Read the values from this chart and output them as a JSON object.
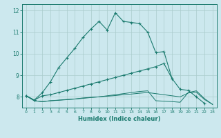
{
  "xlabel": "Humidex (Indice chaleur)",
  "bg_color": "#cce8ee",
  "grid_color": "#aacccc",
  "line_color": "#1a7a6e",
  "xlim": [
    -0.5,
    23.5
  ],
  "ylim": [
    7.5,
    12.3
  ],
  "xticks": [
    0,
    1,
    2,
    3,
    4,
    5,
    6,
    7,
    8,
    9,
    10,
    11,
    12,
    13,
    14,
    15,
    16,
    17,
    18,
    19,
    20,
    21,
    22,
    23
  ],
  "yticks": [
    8,
    9,
    10,
    11,
    12
  ],
  "line1_x": [
    0,
    1,
    2,
    3,
    4,
    5,
    6,
    7,
    8,
    9,
    10,
    11,
    12,
    13,
    14,
    15,
    16,
    17,
    18,
    19,
    20,
    21,
    22
  ],
  "line1_y": [
    8.05,
    7.85,
    8.2,
    8.7,
    9.35,
    9.8,
    10.25,
    10.75,
    11.15,
    11.5,
    11.1,
    11.9,
    11.5,
    11.45,
    11.4,
    11.0,
    10.05,
    10.1,
    8.85,
    8.35,
    8.3,
    8.0,
    7.7
  ],
  "line2_x": [
    0,
    1,
    2,
    3,
    4,
    5,
    6,
    7,
    8,
    9,
    10,
    11,
    12,
    13,
    14,
    15,
    16,
    17,
    18
  ],
  "line2_y": [
    8.05,
    7.85,
    8.05,
    8.1,
    8.2,
    8.3,
    8.4,
    8.5,
    8.6,
    8.7,
    8.8,
    8.9,
    9.0,
    9.1,
    9.2,
    9.3,
    9.4,
    9.55,
    8.85
  ],
  "line3_x": [
    0,
    1,
    2,
    3,
    4,
    5,
    6,
    7,
    8,
    9,
    10,
    11,
    12,
    13,
    14,
    15,
    16,
    17,
    18,
    19,
    20,
    21,
    22,
    23
  ],
  "line3_y": [
    8.05,
    7.82,
    7.78,
    7.82,
    7.85,
    7.88,
    7.9,
    7.95,
    7.98,
    8.0,
    8.05,
    8.1,
    8.15,
    8.2,
    8.25,
    8.28,
    7.82,
    7.8,
    7.78,
    7.75,
    8.2,
    8.28,
    7.92,
    7.65
  ],
  "line4_x": [
    0,
    1,
    2,
    3,
    4,
    5,
    6,
    7,
    8,
    9,
    10,
    11,
    12,
    13,
    14,
    15,
    16,
    17,
    18,
    19,
    20,
    21,
    22,
    23
  ],
  "line4_y": [
    8.05,
    7.82,
    7.78,
    7.82,
    7.84,
    7.87,
    7.9,
    7.93,
    7.97,
    8.0,
    8.03,
    8.06,
    8.1,
    8.13,
    8.17,
    8.2,
    8.15,
    8.1,
    8.05,
    8.0,
    8.18,
    8.22,
    7.88,
    7.65
  ]
}
